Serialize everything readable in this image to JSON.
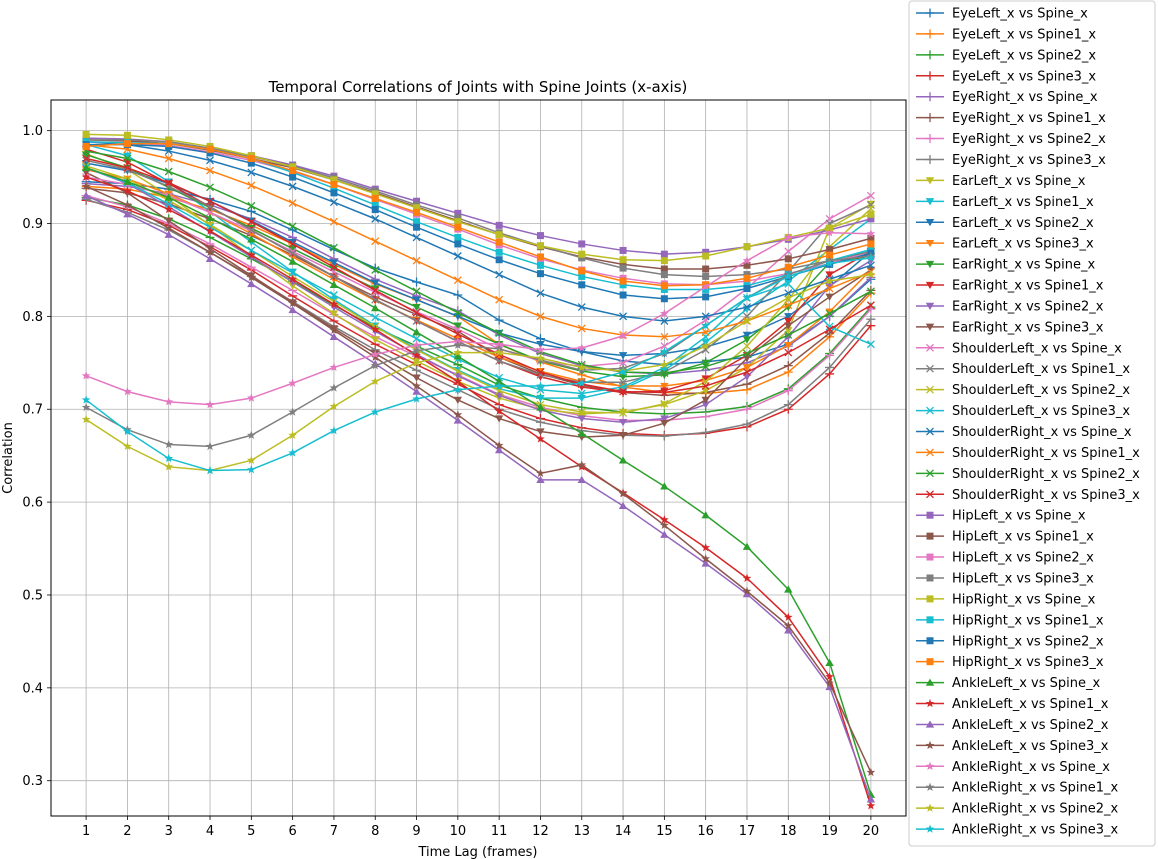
{
  "chart_data": {
    "type": "line",
    "title": "Temporal Correlations of Joints with Spine Joints (x-axis)",
    "xlabel": "Time Lag (frames)",
    "ylabel": "Correlation",
    "x": [
      1,
      2,
      3,
      4,
      5,
      6,
      7,
      8,
      9,
      10,
      11,
      12,
      13,
      14,
      15,
      16,
      17,
      18,
      19,
      20
    ],
    "xlim": [
      0.15,
      20.85
    ],
    "ylim": [
      0.262,
      1.033
    ],
    "yticks": [
      0.3,
      0.4,
      0.5,
      0.6,
      0.7,
      0.8,
      0.9,
      1.0
    ],
    "ytick_labels": [
      "0.3",
      "0.4",
      "0.5",
      "0.6",
      "0.7",
      "0.8",
      "0.9",
      "1.0"
    ],
    "grid": true,
    "legend_position": "outside-right",
    "series": [
      {
        "name": "EyeLeft_x vs Spine_x",
        "color": "#1f77b4",
        "marker": "plus",
        "values": [
          0.945,
          0.943,
          0.937,
          0.926,
          0.913,
          0.893,
          0.872,
          0.852,
          0.837,
          0.823,
          0.796,
          0.776,
          0.762,
          0.752,
          0.748,
          0.751,
          0.756,
          0.77,
          0.8,
          0.84
        ]
      },
      {
        "name": "EyeLeft_x vs Spine1_x",
        "color": "#ff7f0e",
        "marker": "plus",
        "values": [
          0.94,
          0.937,
          0.928,
          0.915,
          0.898,
          0.878,
          0.856,
          0.835,
          0.818,
          0.8,
          0.77,
          0.751,
          0.737,
          0.724,
          0.718,
          0.717,
          0.721,
          0.74,
          0.778,
          0.825
        ]
      },
      {
        "name": "EyeLeft_x vs Spine2_x",
        "color": "#2ca02c",
        "marker": "plus",
        "values": [
          0.928,
          0.92,
          0.905,
          0.885,
          0.862,
          0.838,
          0.812,
          0.788,
          0.768,
          0.748,
          0.726,
          0.712,
          0.702,
          0.697,
          0.695,
          0.697,
          0.703,
          0.722,
          0.76,
          0.81
        ]
      },
      {
        "name": "EyeLeft_x vs Spine3_x",
        "color": "#d62728",
        "marker": "plus",
        "values": [
          0.925,
          0.915,
          0.898,
          0.875,
          0.85,
          0.822,
          0.795,
          0.77,
          0.748,
          0.727,
          0.705,
          0.69,
          0.68,
          0.674,
          0.672,
          0.674,
          0.681,
          0.7,
          0.738,
          0.79
        ]
      },
      {
        "name": "EyeRight_x vs Spine_x",
        "color": "#9467bd",
        "marker": "plus",
        "values": [
          0.943,
          0.94,
          0.932,
          0.92,
          0.905,
          0.885,
          0.862,
          0.84,
          0.822,
          0.806,
          0.78,
          0.76,
          0.747,
          0.74,
          0.738,
          0.742,
          0.75,
          0.768,
          0.8,
          0.842
        ]
      },
      {
        "name": "EyeRight_x vs Spine1_x",
        "color": "#8c564b",
        "marker": "plus",
        "values": [
          0.938,
          0.933,
          0.921,
          0.905,
          0.887,
          0.866,
          0.843,
          0.821,
          0.802,
          0.784,
          0.756,
          0.738,
          0.726,
          0.718,
          0.715,
          0.718,
          0.727,
          0.747,
          0.782,
          0.828
        ]
      },
      {
        "name": "EyeRight_x vs Spine2_x",
        "color": "#e377c2",
        "marker": "plus",
        "values": [
          0.93,
          0.918,
          0.9,
          0.878,
          0.853,
          0.828,
          0.802,
          0.778,
          0.757,
          0.737,
          0.716,
          0.702,
          0.693,
          0.688,
          0.688,
          0.692,
          0.7,
          0.72,
          0.758,
          0.808
        ]
      },
      {
        "name": "EyeRight_x vs Spine3_x",
        "color": "#7f7f7f",
        "marker": "plus",
        "values": [
          0.926,
          0.912,
          0.893,
          0.869,
          0.843,
          0.816,
          0.789,
          0.764,
          0.742,
          0.721,
          0.7,
          0.686,
          0.677,
          0.672,
          0.671,
          0.675,
          0.684,
          0.705,
          0.745,
          0.797
        ]
      },
      {
        "name": "EarLeft_x vs Spine_x",
        "color": "#bcbd22",
        "marker": "tri-down",
        "values": [
          0.975,
          0.958,
          0.93,
          0.898,
          0.865,
          0.833,
          0.803,
          0.775,
          0.752,
          0.73,
          0.712,
          0.7,
          0.695,
          0.697,
          0.705,
          0.72,
          0.745,
          0.785,
          0.895,
          0.921
        ]
      },
      {
        "name": "EarLeft_x vs Spine1_x",
        "color": "#17becf",
        "marker": "tri-down",
        "values": [
          0.985,
          0.973,
          0.945,
          0.913,
          0.88,
          0.848,
          0.818,
          0.79,
          0.765,
          0.742,
          0.722,
          0.712,
          0.712,
          0.722,
          0.742,
          0.772,
          0.808,
          0.838,
          0.872,
          0.905
        ]
      },
      {
        "name": "EarLeft_x vs Spine2_x",
        "color": "#1f77b4",
        "marker": "tri-down",
        "values": [
          0.965,
          0.957,
          0.943,
          0.924,
          0.903,
          0.88,
          0.858,
          0.836,
          0.818,
          0.8,
          0.782,
          0.77,
          0.762,
          0.758,
          0.76,
          0.767,
          0.78,
          0.8,
          0.832,
          0.87
        ]
      },
      {
        "name": "EarLeft_x vs Spine3_x",
        "color": "#ff7f0e",
        "marker": "tri-down",
        "values": [
          0.958,
          0.948,
          0.932,
          0.912,
          0.889,
          0.864,
          0.84,
          0.817,
          0.796,
          0.776,
          0.756,
          0.741,
          0.73,
          0.725,
          0.725,
          0.731,
          0.745,
          0.769,
          0.805,
          0.85
        ]
      },
      {
        "name": "EarRight_x vs Spine_x",
        "color": "#2ca02c",
        "marker": "tri-down",
        "values": [
          0.974,
          0.96,
          0.939,
          0.917,
          0.895,
          0.873,
          0.851,
          0.83,
          0.81,
          0.79,
          0.77,
          0.752,
          0.741,
          0.735,
          0.737,
          0.75,
          0.775,
          0.81,
          0.858,
          0.865
        ]
      },
      {
        "name": "EarRight_x vs Spine1_x",
        "color": "#d62728",
        "marker": "tri-down",
        "values": [
          0.98,
          0.966,
          0.943,
          0.918,
          0.893,
          0.868,
          0.843,
          0.818,
          0.795,
          0.773,
          0.752,
          0.735,
          0.724,
          0.718,
          0.72,
          0.733,
          0.758,
          0.795,
          0.845,
          0.87
        ]
      },
      {
        "name": "EarRight_x vs Spine2_x",
        "color": "#9467bd",
        "marker": "tri-down",
        "values": [
          0.96,
          0.943,
          0.918,
          0.891,
          0.864,
          0.837,
          0.81,
          0.784,
          0.759,
          0.736,
          0.715,
          0.699,
          0.69,
          0.686,
          0.69,
          0.705,
          0.735,
          0.778,
          0.833,
          0.86
        ]
      },
      {
        "name": "EarRight_x vs Spine3_x",
        "color": "#8c564b",
        "marker": "tri-down",
        "values": [
          0.955,
          0.933,
          0.903,
          0.873,
          0.844,
          0.815,
          0.787,
          0.76,
          0.734,
          0.71,
          0.69,
          0.676,
          0.67,
          0.672,
          0.685,
          0.71,
          0.755,
          0.79,
          0.821,
          0.85
        ]
      },
      {
        "name": "ShoulderLeft_x vs Spine_x",
        "color": "#e377c2",
        "marker": "x",
        "values": [
          0.95,
          0.942,
          0.93,
          0.912,
          0.892,
          0.87,
          0.848,
          0.826,
          0.805,
          0.786,
          0.765,
          0.752,
          0.746,
          0.75,
          0.768,
          0.796,
          0.83,
          0.87,
          0.905,
          0.93
        ]
      },
      {
        "name": "ShoulderLeft_x vs Spine1_x",
        "color": "#7f7f7f",
        "marker": "x",
        "values": [
          0.968,
          0.958,
          0.94,
          0.918,
          0.893,
          0.868,
          0.843,
          0.818,
          0.795,
          0.773,
          0.752,
          0.737,
          0.729,
          0.729,
          0.74,
          0.764,
          0.8,
          0.848,
          0.9,
          0.92
        ]
      },
      {
        "name": "ShoulderLeft_x vs Spine2_x",
        "color": "#bcbd22",
        "marker": "x",
        "values": [
          0.962,
          0.948,
          0.925,
          0.899,
          0.871,
          0.843,
          0.816,
          0.789,
          0.764,
          0.741,
          0.72,
          0.705,
          0.697,
          0.696,
          0.706,
          0.73,
          0.768,
          0.818,
          0.875,
          0.916
        ]
      },
      {
        "name": "ShoulderLeft_x vs Spine3_x",
        "color": "#17becf",
        "marker": "x",
        "values": [
          0.96,
          0.944,
          0.921,
          0.896,
          0.871,
          0.847,
          0.823,
          0.799,
          0.776,
          0.754,
          0.734,
          0.721,
          0.717,
          0.724,
          0.745,
          0.778,
          0.82,
          0.835,
          0.789,
          0.77
        ]
      },
      {
        "name": "ShoulderRight_x vs Spine_x",
        "color": "#1f77b4",
        "marker": "x",
        "values": [
          0.988,
          0.985,
          0.978,
          0.968,
          0.955,
          0.94,
          0.923,
          0.905,
          0.885,
          0.865,
          0.845,
          0.825,
          0.81,
          0.8,
          0.795,
          0.8,
          0.81,
          0.825,
          0.84,
          0.855
        ]
      },
      {
        "name": "ShoulderRight_x vs Spine1_x",
        "color": "#ff7f0e",
        "marker": "x",
        "values": [
          0.985,
          0.98,
          0.97,
          0.957,
          0.941,
          0.922,
          0.902,
          0.881,
          0.86,
          0.839,
          0.818,
          0.8,
          0.787,
          0.78,
          0.778,
          0.783,
          0.795,
          0.812,
          0.83,
          0.848
        ]
      },
      {
        "name": "ShoulderRight_x vs Spine2_x",
        "color": "#2ca02c",
        "marker": "x",
        "values": [
          0.978,
          0.97,
          0.956,
          0.939,
          0.919,
          0.897,
          0.874,
          0.85,
          0.827,
          0.804,
          0.782,
          0.762,
          0.748,
          0.74,
          0.739,
          0.746,
          0.76,
          0.78,
          0.803,
          0.827
        ]
      },
      {
        "name": "ShoulderRight_x vs Spine3_x",
        "color": "#d62728",
        "marker": "x",
        "values": [
          0.97,
          0.96,
          0.944,
          0.924,
          0.902,
          0.878,
          0.853,
          0.828,
          0.804,
          0.781,
          0.759,
          0.74,
          0.727,
          0.719,
          0.718,
          0.725,
          0.74,
          0.761,
          0.786,
          0.812
        ]
      },
      {
        "name": "HipLeft_x vs Spine_x",
        "color": "#9467bd",
        "marker": "square",
        "values": [
          0.992,
          0.991,
          0.988,
          0.981,
          0.973,
          0.963,
          0.951,
          0.937,
          0.924,
          0.911,
          0.898,
          0.887,
          0.878,
          0.871,
          0.867,
          0.869,
          0.875,
          0.883,
          0.893,
          0.905
        ]
      },
      {
        "name": "HipLeft_x vs Spine1_x",
        "color": "#8c564b",
        "marker": "square",
        "values": [
          0.99,
          0.989,
          0.986,
          0.979,
          0.97,
          0.96,
          0.947,
          0.933,
          0.918,
          0.903,
          0.888,
          0.875,
          0.864,
          0.856,
          0.851,
          0.851,
          0.855,
          0.862,
          0.872,
          0.884
        ]
      },
      {
        "name": "HipLeft_x vs Spine2_x",
        "color": "#e377c2",
        "marker": "square",
        "values": [
          0.988,
          0.987,
          0.984,
          0.977,
          0.968,
          0.956,
          0.942,
          0.926,
          0.91,
          0.894,
          0.877,
          0.862,
          0.85,
          0.841,
          0.835,
          0.834,
          0.838,
          0.846,
          0.857,
          0.87
        ]
      },
      {
        "name": "HipLeft_x vs Spine3_x",
        "color": "#7f7f7f",
        "marker": "square",
        "values": [
          0.99,
          0.99,
          0.988,
          0.981,
          0.972,
          0.962,
          0.949,
          0.935,
          0.92,
          0.906,
          0.89,
          0.876,
          0.863,
          0.852,
          0.845,
          0.843,
          0.845,
          0.851,
          0.86,
          0.87
        ]
      },
      {
        "name": "HipRight_x vs Spine_x",
        "color": "#bcbd22",
        "marker": "square",
        "values": [
          0.996,
          0.995,
          0.99,
          0.983,
          0.973,
          0.961,
          0.947,
          0.932,
          0.917,
          0.902,
          0.888,
          0.876,
          0.867,
          0.861,
          0.86,
          0.865,
          0.875,
          0.885,
          0.895,
          0.91
        ]
      },
      {
        "name": "HipRight_x vs Spine1_x",
        "color": "#17becf",
        "marker": "square",
        "values": [
          0.988,
          0.987,
          0.986,
          0.98,
          0.97,
          0.955,
          0.938,
          0.92,
          0.902,
          0.885,
          0.869,
          0.855,
          0.843,
          0.834,
          0.829,
          0.829,
          0.833,
          0.845,
          0.86,
          0.872
        ]
      },
      {
        "name": "HipRight_x vs Spine2_x",
        "color": "#1f77b4",
        "marker": "square",
        "values": [
          0.985,
          0.985,
          0.983,
          0.976,
          0.965,
          0.95,
          0.933,
          0.915,
          0.896,
          0.878,
          0.861,
          0.846,
          0.834,
          0.823,
          0.819,
          0.821,
          0.83,
          0.843,
          0.856,
          0.868
        ]
      },
      {
        "name": "HipRight_x vs Spine3_x",
        "color": "#ff7f0e",
        "marker": "square",
        "values": [
          0.983,
          0.986,
          0.986,
          0.98,
          0.97,
          0.957,
          0.942,
          0.927,
          0.912,
          0.896,
          0.88,
          0.864,
          0.849,
          0.838,
          0.833,
          0.834,
          0.841,
          0.853,
          0.866,
          0.878
        ]
      },
      {
        "name": "AnkleLeft_x vs Spine_x",
        "color": "#2ca02c",
        "marker": "triangle",
        "values": [
          0.96,
          0.945,
          0.928,
          0.906,
          0.883,
          0.859,
          0.834,
          0.809,
          0.783,
          0.757,
          0.73,
          0.702,
          0.674,
          0.645,
          0.617,
          0.586,
          0.552,
          0.506,
          0.427,
          0.285
        ]
      },
      {
        "name": "AnkleLeft_x vs Spine1_x",
        "color": "#d62728",
        "marker": "star",
        "values": [
          0.95,
          0.935,
          0.915,
          0.892,
          0.866,
          0.84,
          0.813,
          0.786,
          0.758,
          0.73,
          0.698,
          0.668,
          0.638,
          0.61,
          0.581,
          0.551,
          0.518,
          0.476,
          0.412,
          0.273
        ]
      },
      {
        "name": "AnkleLeft_x vs Spine2_x",
        "color": "#9467bd",
        "marker": "triangle",
        "values": [
          0.93,
          0.91,
          0.888,
          0.862,
          0.835,
          0.807,
          0.778,
          0.749,
          0.719,
          0.688,
          0.656,
          0.624,
          0.624,
          0.596,
          0.565,
          0.534,
          0.501,
          0.462,
          0.401,
          0.28
        ]
      },
      {
        "name": "AnkleLeft_x vs Spine3_x",
        "color": "#8c564b",
        "marker": "star",
        "values": [
          0.94,
          0.92,
          0.895,
          0.869,
          0.842,
          0.814,
          0.785,
          0.756,
          0.725,
          0.694,
          0.661,
          0.631,
          0.64,
          0.609,
          0.575,
          0.539,
          0.504,
          0.467,
          0.405,
          0.309
        ]
      },
      {
        "name": "AnkleRight_x vs Spine_x",
        "color": "#e377c2",
        "marker": "star",
        "values": [
          0.736,
          0.719,
          0.708,
          0.705,
          0.712,
          0.728,
          0.745,
          0.759,
          0.769,
          0.773,
          0.77,
          0.764,
          0.766,
          0.779,
          0.803,
          0.832,
          0.86,
          0.885,
          0.89,
          0.889
        ]
      },
      {
        "name": "AnkleRight_x vs Spine1_x",
        "color": "#7f7f7f",
        "marker": "star",
        "values": [
          0.702,
          0.678,
          0.662,
          0.66,
          0.672,
          0.697,
          0.723,
          0.747,
          0.763,
          0.769,
          0.765,
          0.753,
          0.742,
          0.744,
          0.76,
          0.79,
          0.82,
          0.845,
          0.86,
          0.865
        ]
      },
      {
        "name": "AnkleRight_x vs Spine2_x",
        "color": "#bcbd22",
        "marker": "star",
        "values": [
          0.689,
          0.66,
          0.638,
          0.634,
          0.645,
          0.672,
          0.703,
          0.73,
          0.75,
          0.761,
          0.761,
          0.755,
          0.745,
          0.741,
          0.748,
          0.768,
          0.795,
          0.82,
          0.838,
          0.845
        ]
      },
      {
        "name": "AnkleRight_x vs Spine3_x",
        "color": "#17becf",
        "marker": "star",
        "values": [
          0.71,
          0.676,
          0.647,
          0.634,
          0.635,
          0.653,
          0.677,
          0.697,
          0.711,
          0.721,
          0.725,
          0.725,
          0.728,
          0.74,
          0.762,
          0.79,
          0.82,
          0.843,
          0.857,
          0.863
        ]
      }
    ]
  }
}
